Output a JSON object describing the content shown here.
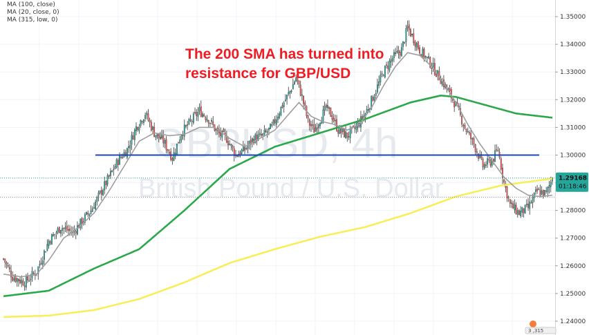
{
  "chart_data": {
    "type": "candlestick",
    "symbol": "GBPUSD",
    "interval": "4h",
    "watermark_symbol": "GBPUSD, 4h",
    "watermark_name": "British Pound / U.S. Dollar",
    "indicators": [
      {
        "label": "MA (100, close)",
        "color": "#2ba84a"
      },
      {
        "label": "MA (20, close, 0)",
        "color": "#9e9e9e"
      },
      {
        "label": "MA (315, low, 0)",
        "color": "#f8ee5a"
      }
    ],
    "annotation_lines": [
      "The 200 SMA has turned into",
      "resistance for GBP/USD"
    ],
    "annotation_color": "#ef1c24",
    "horizontal_line": {
      "price": 1.3,
      "color": "#1a47b8"
    },
    "ylim": [
      1.235,
      1.356
    ],
    "y_ticks": [
      "1.24000",
      "1.25000",
      "1.26000",
      "1.27000",
      "1.28000",
      "1.29000",
      "1.30000",
      "1.31000",
      "1.32000",
      "1.33000",
      "1.34000",
      "1.35000"
    ],
    "current_price_label": "1.29168",
    "countdown_label": "01:18:46",
    "price_tag_color": "#26a69a",
    "last_price": 1.2917,
    "bid_line_price": 1.2848,
    "candle_up_color": "#26a69a",
    "candle_down_color": "#ef5350",
    "grid": true,
    "legend_position": "top-left",
    "anchors": {
      "close": [
        [
          0,
          1.2625
        ],
        [
          6,
          1.256
        ],
        [
          14,
          1.254
        ],
        [
          22,
          1.258
        ],
        [
          30,
          1.269
        ],
        [
          38,
          1.274
        ],
        [
          46,
          1.272
        ],
        [
          52,
          1.276
        ],
        [
          58,
          1.28
        ],
        [
          64,
          1.286
        ],
        [
          70,
          1.292
        ],
        [
          76,
          1.298
        ],
        [
          82,
          1.302
        ],
        [
          88,
          1.31
        ],
        [
          94,
          1.315
        ],
        [
          100,
          1.308
        ],
        [
          106,
          1.305
        ],
        [
          112,
          1.299
        ],
        [
          118,
          1.308
        ],
        [
          124,
          1.312
        ],
        [
          130,
          1.316
        ],
        [
          136,
          1.313
        ],
        [
          142,
          1.308
        ],
        [
          148,
          1.306
        ],
        [
          154,
          1.3
        ],
        [
          160,
          1.302
        ],
        [
          166,
          1.306
        ],
        [
          172,
          1.307
        ],
        [
          178,
          1.31
        ],
        [
          184,
          1.317
        ],
        [
          190,
          1.323
        ],
        [
          194,
          1.328
        ],
        [
          198,
          1.321
        ],
        [
          202,
          1.312
        ],
        [
          206,
          1.309
        ],
        [
          210,
          1.313
        ],
        [
          214,
          1.317
        ],
        [
          218,
          1.314
        ],
        [
          222,
          1.309
        ],
        [
          228,
          1.307
        ],
        [
          234,
          1.31
        ],
        [
          240,
          1.315
        ],
        [
          246,
          1.322
        ],
        [
          252,
          1.33
        ],
        [
          258,
          1.335
        ],
        [
          264,
          1.338
        ],
        [
          268,
          1.346
        ],
        [
          272,
          1.342
        ],
        [
          276,
          1.338
        ],
        [
          282,
          1.334
        ],
        [
          288,
          1.329
        ],
        [
          294,
          1.324
        ],
        [
          300,
          1.318
        ],
        [
          306,
          1.31
        ],
        [
          312,
          1.304
        ],
        [
          318,
          1.296
        ],
        [
          324,
          1.298
        ],
        [
          328,
          1.302
        ],
        [
          332,
          1.29
        ],
        [
          336,
          1.282
        ],
        [
          342,
          1.279
        ],
        [
          348,
          1.281
        ],
        [
          354,
          1.287
        ],
        [
          360,
          1.286
        ],
        [
          364,
          1.2917
        ]
      ],
      "ma100": [
        [
          0,
          1.249
        ],
        [
          30,
          1.251
        ],
        [
          60,
          1.259
        ],
        [
          90,
          1.266
        ],
        [
          120,
          1.28
        ],
        [
          150,
          1.295
        ],
        [
          180,
          1.303
        ],
        [
          210,
          1.308
        ],
        [
          240,
          1.313
        ],
        [
          270,
          1.319
        ],
        [
          290,
          1.3215
        ],
        [
          300,
          1.321
        ],
        [
          320,
          1.318
        ],
        [
          340,
          1.315
        ],
        [
          364,
          1.3135
        ]
      ],
      "ma20": [
        [
          0,
          1.257
        ],
        [
          12,
          1.256
        ],
        [
          22,
          1.257
        ],
        [
          30,
          1.262
        ],
        [
          40,
          1.27
        ],
        [
          50,
          1.274
        ],
        [
          60,
          1.279
        ],
        [
          70,
          1.287
        ],
        [
          80,
          1.296
        ],
        [
          90,
          1.305
        ],
        [
          100,
          1.308
        ],
        [
          110,
          1.307
        ],
        [
          120,
          1.3075
        ],
        [
          130,
          1.31
        ],
        [
          140,
          1.31
        ],
        [
          150,
          1.306
        ],
        [
          160,
          1.303
        ],
        [
          170,
          1.306
        ],
        [
          180,
          1.309
        ],
        [
          188,
          1.314
        ],
        [
          196,
          1.319
        ],
        [
          204,
          1.314
        ],
        [
          212,
          1.312
        ],
        [
          220,
          1.311
        ],
        [
          228,
          1.309
        ],
        [
          236,
          1.311
        ],
        [
          244,
          1.317
        ],
        [
          252,
          1.325
        ],
        [
          260,
          1.332
        ],
        [
          268,
          1.337
        ],
        [
          276,
          1.336
        ],
        [
          284,
          1.332
        ],
        [
          292,
          1.326
        ],
        [
          300,
          1.319
        ],
        [
          308,
          1.311
        ],
        [
          316,
          1.304
        ],
        [
          324,
          1.298
        ],
        [
          332,
          1.292
        ],
        [
          340,
          1.288
        ],
        [
          348,
          1.2855
        ],
        [
          356,
          1.285
        ],
        [
          364,
          1.2855
        ]
      ],
      "ma315": [
        [
          0,
          1.2415
        ],
        [
          30,
          1.242
        ],
        [
          60,
          1.244
        ],
        [
          90,
          1.248
        ],
        [
          120,
          1.254
        ],
        [
          150,
          1.261
        ],
        [
          180,
          1.266
        ],
        [
          210,
          1.2705
        ],
        [
          240,
          1.274
        ],
        [
          270,
          1.279
        ],
        [
          300,
          1.285
        ],
        [
          330,
          1.289
        ],
        [
          364,
          1.2915
        ]
      ]
    }
  },
  "footer": {
    "badge_text": "3 ,315"
  }
}
